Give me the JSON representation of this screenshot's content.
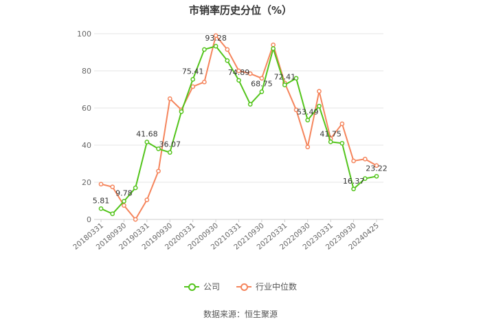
{
  "title": "市销率历史分位（%）",
  "source": "数据来源：恒生聚源",
  "chart_data": {
    "type": "line",
    "ylim": [
      0,
      100
    ],
    "yticks": [
      0,
      20,
      40,
      60,
      80,
      100
    ],
    "grid": true,
    "legend_position": "bottom",
    "x_tick_labels": [
      "20180331",
      "20180930",
      "20190331",
      "20190930",
      "20200331",
      "20200930",
      "20210331",
      "20210930",
      "20220331",
      "20220930",
      "20230331",
      "20230930",
      "20240425"
    ],
    "x": [
      "20180331",
      "20180630",
      "20180930",
      "20181231",
      "20190331",
      "20190630",
      "20190930",
      "20191231",
      "20200331",
      "20200630",
      "20200930",
      "20201231",
      "20210331",
      "20210630",
      "20210930",
      "20211231",
      "20220331",
      "20220630",
      "20220930",
      "20221231",
      "20230331",
      "20230630",
      "20230930",
      "20231231",
      "20240425"
    ],
    "series": [
      {
        "name": "公司",
        "color": "#52c41a",
        "values": [
          5.81,
          3.0,
          9.78,
          17.0,
          41.68,
          38.0,
          36.07,
          58.0,
          75.41,
          91.5,
          93.28,
          85.5,
          74.89,
          62.0,
          68.75,
          92.0,
          72.41,
          76.0,
          53.49,
          61.0,
          41.75,
          41.0,
          16.37,
          22.0,
          23.22
        ],
        "labels": {
          "0": "5.81",
          "2": "9.78",
          "4": "41.68",
          "6": "36.07",
          "8": "75.41",
          "10": "93.28",
          "12": "74.89",
          "14": "68.75",
          "16": "72.41",
          "18": "53.49",
          "20": "41.75",
          "22": "16.37",
          "24": "23.22"
        }
      },
      {
        "name": "行业中位数",
        "color": "#f5845b",
        "values": [
          19.0,
          17.5,
          7.5,
          0.0,
          10.5,
          26.0,
          65.0,
          59.0,
          71.5,
          74.0,
          99.0,
          91.5,
          80.0,
          78.5,
          76.0,
          94.0,
          73.5,
          59.0,
          39.0,
          69.0,
          43.5,
          51.5,
          31.5,
          32.5,
          29.0
        ],
        "labels": {}
      }
    ]
  }
}
